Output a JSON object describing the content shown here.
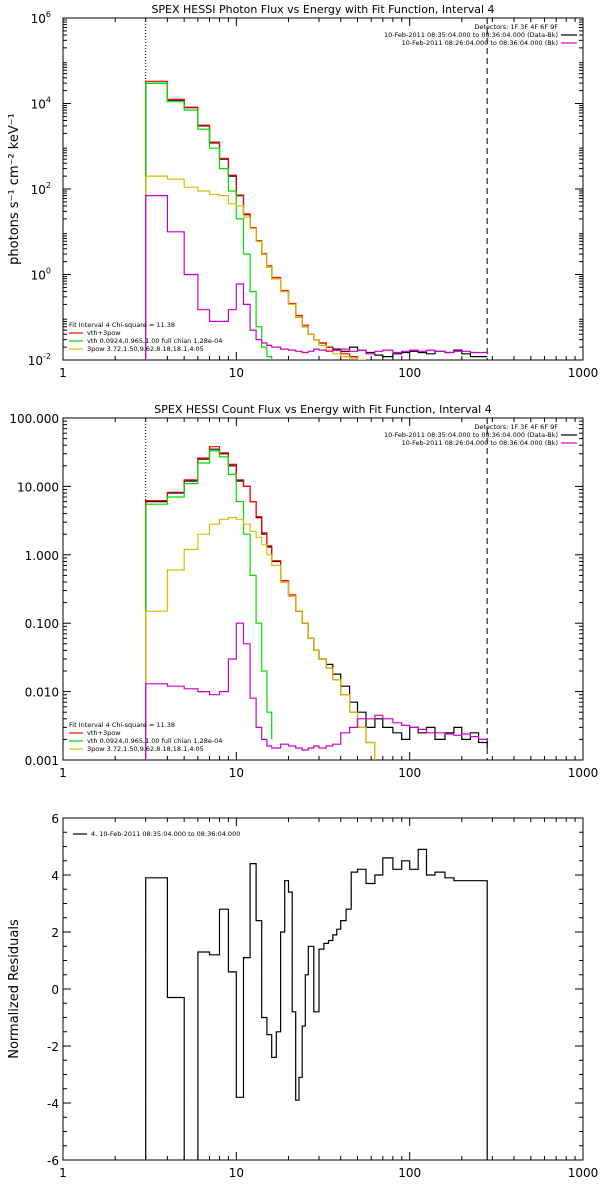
{
  "chart_data": [
    {
      "type": "line",
      "title": "SPEX HESSI Photon Flux vs Energy with Fit Function, Interval 4",
      "xlabel": "",
      "ylabel": "photons s⁻¹ cm⁻² keV⁻¹",
      "xscale": "log",
      "yscale": "log",
      "xlim": [
        1,
        1000
      ],
      "ylim": [
        0.01,
        1000000
      ],
      "x_ticks": [
        1,
        10,
        100,
        1000
      ],
      "x_tick_labels": [
        "1",
        "10",
        "100",
        "1000"
      ],
      "y_ticks": [
        0.01,
        1,
        100,
        10000,
        1000000
      ],
      "y_tick_labels": [
        {
          "base": "10",
          "exp": "-2"
        },
        {
          "base": "10",
          "exp": "0"
        },
        {
          "base": "10",
          "exp": "2"
        },
        {
          "base": "10",
          "exp": "4"
        },
        {
          "base": "10",
          "exp": "6"
        }
      ],
      "vlines": [
        {
          "x": 3,
          "style": "dotted"
        },
        {
          "x": 280,
          "style": "dashed"
        }
      ],
      "legend_top_right": [
        {
          "text": "Detectors: 1F 3F 4F 6F 9F",
          "color": ""
        },
        {
          "text": "10-Feb-2011 08:35:04.000 to 08:36:04.000 (Data-Bk)",
          "color": "#000000"
        },
        {
          "text": "10-Feb-2011 08:26:04.000 to 08:36:04.000 (Bk)",
          "color": "#cc00cc"
        }
      ],
      "legend_bottom_left": [
        {
          "text": "Fit Interval  4    Chi-square = 11.38",
          "color": ""
        },
        {
          "text": "vth+3pow",
          "color": "#ff0000"
        },
        {
          "text": "vth 0.0924,0.965,1.00  full chian 1.28e-04",
          "color": "#00dd00"
        },
        {
          "text": "3pow 3.72,1.50,9.62,8.18,18.1,4.05",
          "color": "#d4c000"
        }
      ],
      "series": [
        {
          "name": "Data-Bk",
          "color": "#000000",
          "x": [
            3,
            3.5,
            4,
            5,
            6,
            7,
            8,
            9,
            10,
            11,
            12,
            13,
            14,
            15,
            16,
            18,
            20,
            22,
            24,
            26,
            28,
            30,
            33,
            36,
            40,
            45,
            50,
            56,
            63,
            70,
            80,
            90,
            100,
            112,
            125,
            140,
            160,
            180,
            200,
            224,
            250,
            280
          ],
          "y": [
            30000,
            30000,
            12000,
            8000,
            3000,
            1200,
            500,
            200,
            70,
            25,
            12,
            6,
            3,
            1.5,
            0.8,
            0.4,
            0.2,
            0.1,
            0.06,
            0.04,
            0.03,
            0.025,
            0.02,
            0.018,
            0.016,
            0.02,
            0.017,
            0.015,
            0.013,
            0.012,
            0.014,
            0.015,
            0.016,
            0.015,
            0.014,
            0.016,
            0.015,
            0.017,
            0.014,
            0.012,
            0.012,
            0.012
          ]
        },
        {
          "name": "vth+3pow",
          "color": "#ff0000",
          "x": [
            3,
            3.5,
            4,
            5,
            6,
            7,
            8,
            9,
            10,
            11,
            12,
            13,
            14,
            15,
            16,
            18,
            20,
            22,
            24,
            26,
            28,
            30,
            33,
            36,
            40,
            45,
            50
          ],
          "y": [
            33000,
            33000,
            12500,
            8200,
            3100,
            1250,
            520,
            210,
            72,
            26,
            12.5,
            6.2,
            3.1,
            1.6,
            0.85,
            0.42,
            0.21,
            0.11,
            0.065,
            0.04,
            0.03,
            0.025,
            0.02,
            0.017,
            0.014,
            0.012,
            0.01
          ]
        },
        {
          "name": "vth",
          "color": "#00dd00",
          "x": [
            3,
            3.5,
            4,
            5,
            6,
            7,
            8,
            9,
            10,
            11,
            12,
            13,
            14,
            15,
            16
          ],
          "y": [
            30000,
            30000,
            11000,
            7000,
            2500,
            900,
            300,
            90,
            20,
            3,
            0.4,
            0.06,
            0.02,
            0.012,
            0.01
          ]
        },
        {
          "name": "3pow",
          "color": "#d4c000",
          "x": [
            3,
            3.5,
            4,
            5,
            6,
            7,
            8,
            9,
            10,
            11,
            12,
            13,
            14,
            15,
            16,
            18,
            20,
            22,
            24,
            26,
            28,
            30,
            33,
            36,
            40,
            45,
            50,
            56
          ],
          "y": [
            200,
            200,
            170,
            110,
            90,
            75,
            70,
            45,
            40,
            22,
            12,
            6,
            3,
            1.5,
            0.8,
            0.4,
            0.2,
            0.1,
            0.06,
            0.04,
            0.03,
            0.022,
            0.017,
            0.014,
            0.012,
            0.011,
            0.01,
            0.01
          ]
        },
        {
          "name": "Bk",
          "color": "#cc00cc",
          "x": [
            3,
            3.5,
            4,
            5,
            6,
            7,
            8,
            9,
            10,
            11,
            12,
            13,
            14,
            15,
            16,
            18,
            20,
            22,
            24,
            26,
            28,
            30,
            33,
            36,
            40,
            45,
            50,
            56,
            63,
            70,
            80,
            90,
            100,
            112,
            125,
            140,
            160,
            180,
            200,
            224,
            250,
            280
          ],
          "y": [
            70,
            70,
            10,
            1,
            0.15,
            0.08,
            0.08,
            0.15,
            0.6,
            0.2,
            0.05,
            0.03,
            0.025,
            0.022,
            0.02,
            0.018,
            0.017,
            0.016,
            0.015,
            0.016,
            0.018,
            0.017,
            0.016,
            0.017,
            0.018,
            0.016,
            0.017,
            0.014,
            0.016,
            0.017,
            0.015,
            0.016,
            0.017,
            0.016,
            0.017,
            0.016,
            0.015,
            0.016,
            0.016,
            0.015,
            0.015,
            0.015
          ]
        }
      ]
    },
    {
      "type": "line",
      "title": "SPEX HESSI Count Flux vs Energy with Fit Function, Interval 4",
      "xlabel": "",
      "ylabel": "",
      "xscale": "log",
      "yscale": "log",
      "xlim": [
        1,
        1000
      ],
      "ylim": [
        0.001,
        100
      ],
      "x_ticks": [
        1,
        10,
        100,
        1000
      ],
      "x_tick_labels": [
        "1",
        "10",
        "100",
        "1000"
      ],
      "y_ticks": [
        0.001,
        0.01,
        0.1,
        1,
        10,
        100
      ],
      "y_tick_labels": [
        "0.001",
        "0.010",
        "0.100",
        "1.000",
        "10.000",
        "100.000"
      ],
      "vlines": [
        {
          "x": 3,
          "style": "dotted"
        },
        {
          "x": 280,
          "style": "dashed"
        }
      ],
      "legend_top_right": [
        {
          "text": "Detectors: 1F 3F 4F 6F 9F",
          "color": ""
        },
        {
          "text": "10-Feb-2011 08:35:04.000 to 08:36:04.000 (Data-Bk)",
          "color": "#000000"
        },
        {
          "text": "10-Feb-2011 08:26:04.000 to 08:36:04.000 (Bk)",
          "color": "#cc00cc"
        }
      ],
      "legend_bottom_left": [
        {
          "text": "Fit Interval  4    Chi-square = 11.38",
          "color": ""
        },
        {
          "text": "vth+3pow",
          "color": "#ff0000"
        },
        {
          "text": "vth 0.0924,0.965,1.00  full chian 1.28e-04",
          "color": "#00dd00"
        },
        {
          "text": "3pow 3.72,1.50,9.62,8.18,18.1,4.05",
          "color": "#d4c000"
        }
      ],
      "series": [
        {
          "name": "Data-Bk",
          "color": "#000000",
          "x": [
            3,
            3.5,
            4,
            5,
            6,
            7,
            8,
            9,
            10,
            11,
            12,
            13,
            14,
            15,
            16,
            18,
            20,
            22,
            24,
            26,
            28,
            30,
            33,
            36,
            40,
            45,
            50,
            56,
            63,
            70,
            80,
            90,
            100,
            112,
            125,
            140,
            160,
            180,
            200,
            224,
            250,
            280
          ],
          "y": [
            6,
            6,
            8,
            12,
            25,
            35,
            30,
            20,
            12,
            10,
            6,
            3.5,
            2,
            1.3,
            0.8,
            0.4,
            0.25,
            0.15,
            0.1,
            0.06,
            0.04,
            0.03,
            0.025,
            0.018,
            0.012,
            0.007,
            0.005,
            0.003,
            0.004,
            0.003,
            0.0025,
            0.002,
            0.003,
            0.0025,
            0.003,
            0.002,
            0.0025,
            0.003,
            0.002,
            0.0025,
            0.0018,
            0.0015
          ]
        },
        {
          "name": "vth+3pow",
          "color": "#ff0000",
          "x": [
            3,
            3.5,
            4,
            5,
            6,
            7,
            8,
            9,
            10,
            11,
            12,
            13,
            14,
            15,
            16,
            18,
            20,
            22,
            24,
            26,
            28,
            30,
            33,
            36,
            40,
            45,
            50,
            56,
            63
          ],
          "y": [
            6.2,
            6.2,
            8.2,
            12.5,
            26,
            38,
            31,
            21,
            12.5,
            10,
            6,
            3.6,
            2.1,
            1.35,
            0.82,
            0.42,
            0.26,
            0.15,
            0.1,
            0.06,
            0.04,
            0.03,
            0.022,
            0.015,
            0.009,
            0.005,
            0.003,
            0.0018,
            0.001
          ]
        },
        {
          "name": "vth",
          "color": "#00dd00",
          "x": [
            3,
            3.5,
            4,
            5,
            6,
            7,
            8,
            9,
            10,
            11,
            12,
            13,
            14,
            15,
            16
          ],
          "y": [
            5.5,
            5.5,
            7,
            11,
            22,
            33,
            27,
            15,
            6,
            2,
            0.5,
            0.1,
            0.02,
            0.005,
            0.002
          ]
        },
        {
          "name": "3pow",
          "color": "#d4c000",
          "x": [
            3,
            3.5,
            4,
            5,
            6,
            7,
            8,
            9,
            10,
            11,
            12,
            13,
            14,
            15,
            16,
            18,
            20,
            22,
            24,
            26,
            28,
            30,
            33,
            36,
            40,
            45,
            50,
            56,
            63
          ],
          "y": [
            0.15,
            0.15,
            0.6,
            1.2,
            2,
            2.8,
            3.3,
            3.5,
            3.3,
            2.8,
            2.2,
            1.8,
            1.4,
            1,
            0.7,
            0.4,
            0.25,
            0.15,
            0.1,
            0.06,
            0.04,
            0.03,
            0.022,
            0.015,
            0.009,
            0.005,
            0.003,
            0.0018,
            0.001
          ]
        },
        {
          "name": "Bk",
          "color": "#cc00cc",
          "x": [
            3,
            3.5,
            4,
            5,
            6,
            7,
            8,
            9,
            10,
            11,
            12,
            13,
            14,
            15,
            16,
            18,
            20,
            22,
            24,
            26,
            28,
            30,
            33,
            36,
            40,
            45,
            50,
            56,
            63,
            70,
            80,
            90,
            100,
            112,
            125,
            140,
            160,
            180,
            200,
            224,
            250,
            280
          ],
          "y": [
            0.013,
            0.013,
            0.012,
            0.011,
            0.01,
            0.009,
            0.01,
            0.03,
            0.1,
            0.05,
            0.008,
            0.003,
            0.002,
            0.0016,
            0.0015,
            0.0017,
            0.0016,
            0.0015,
            0.0014,
            0.0015,
            0.0016,
            0.0015,
            0.0016,
            0.0017,
            0.0025,
            0.003,
            0.004,
            0.004,
            0.0045,
            0.004,
            0.0035,
            0.0032,
            0.003,
            0.0028,
            0.0025,
            0.0025,
            0.0024,
            0.0023,
            0.0024,
            0.0022,
            0.002,
            0.002
          ]
        }
      ]
    },
    {
      "type": "line",
      "title": "",
      "xlabel": "",
      "ylabel": "Normalized Residuals",
      "xscale": "log",
      "yscale": "linear",
      "xlim": [
        1,
        1000
      ],
      "ylim": [
        -6,
        6
      ],
      "x_ticks": [
        1,
        10,
        100,
        1000
      ],
      "x_tick_labels": [
        "1",
        "10",
        "100",
        "1000"
      ],
      "y_ticks": [
        -6,
        -4,
        -2,
        0,
        2,
        4,
        6
      ],
      "y_tick_labels": [
        "-6",
        "-4",
        "-2",
        "0",
        "2",
        "4",
        "6"
      ],
      "hline_zero": false,
      "legend_top_left": "4. 10-Feb-2011 08:35:04.000 to 08:36:04.000",
      "series": [
        {
          "name": "4. 10-Feb-2011 08:35:04.000 to 08:36:04.000",
          "color": "#000000",
          "edges": [
            3,
            4,
            5,
            5.5,
            6,
            7,
            8,
            9,
            10,
            11,
            12,
            13,
            14,
            15,
            16,
            17,
            18,
            19,
            20,
            21,
            22,
            23,
            24,
            25,
            26,
            28,
            30,
            32,
            34,
            36,
            38,
            40,
            43,
            46,
            50,
            56,
            63,
            70,
            80,
            90,
            100,
            112,
            125,
            140,
            160,
            180,
            200,
            224,
            250,
            280
          ],
          "values": [
            3.9,
            -0.3,
            -6.1,
            -6.1,
            1.3,
            1.2,
            2.8,
            0.6,
            -3.8,
            1.1,
            4.4,
            2.4,
            -1.0,
            -1.6,
            -2.4,
            -1.5,
            2.0,
            3.8,
            3.4,
            -0.8,
            -3.9,
            -3.1,
            -1.3,
            0.5,
            1.5,
            -0.8,
            1.4,
            1.6,
            1.7,
            1.9,
            2.1,
            2.4,
            2.8,
            4.1,
            4.2,
            3.7,
            4.0,
            4.6,
            4.2,
            4.5,
            4.2,
            4.9,
            4.0,
            4.1,
            3.9,
            3.8,
            3.8,
            3.8,
            3.8
          ]
        }
      ]
    }
  ]
}
